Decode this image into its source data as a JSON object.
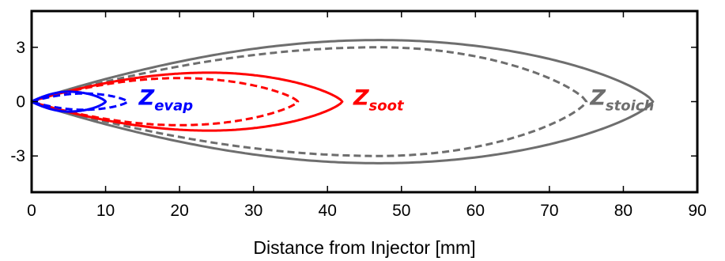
{
  "chart_data": {
    "type": "line",
    "title": "",
    "xlabel": "Distance from Injector [mm]",
    "ylabel": "",
    "xlim": [
      0,
      90
    ],
    "ylim": [
      -5,
      5
    ],
    "xticks": [
      0,
      10,
      20,
      30,
      40,
      50,
      60,
      70,
      80,
      90
    ],
    "yticks": [
      -3,
      0,
      3
    ],
    "ytick_labels": [
      "-3",
      "0",
      "3"
    ],
    "xtick_labels": [
      "0",
      "10",
      "20",
      "30",
      "40",
      "50",
      "60",
      "70",
      "80",
      "90"
    ],
    "grid": false,
    "legend": "none",
    "series": [
      {
        "group": "stoich",
        "style": "solid",
        "color": "#6e6e6e",
        "tip_x": 84,
        "max_y": 3.4,
        "max_at_x": 47
      },
      {
        "group": "stoich",
        "style": "dashed",
        "color": "#6e6e6e",
        "tip_x": 75,
        "max_y": 3.0,
        "max_at_x": 47
      },
      {
        "group": "soot",
        "style": "solid",
        "color": "#ff0000",
        "tip_x": 42,
        "max_y": 1.6,
        "max_at_x": 24
      },
      {
        "group": "soot",
        "style": "dashed",
        "color": "#ff0000",
        "tip_x": 36,
        "max_y": 1.3,
        "max_at_x": 20
      },
      {
        "group": "evap",
        "style": "solid",
        "color": "#0000ff",
        "tip_x": 10,
        "max_y": 0.55,
        "max_at_x": 5
      },
      {
        "group": "evap",
        "style": "dashed",
        "color": "#0000ff",
        "tip_x": 13,
        "max_y": 0.45,
        "max_at_x": 7
      }
    ],
    "annotations": [
      {
        "name": "evap",
        "base": "Z",
        "sub": "evap",
        "color": "#0000ff",
        "x": 14.5,
        "y": 0
      },
      {
        "name": "soot",
        "base": "Z",
        "sub": "soot",
        "color": "#ff0000",
        "x": 43.5,
        "y": 0
      },
      {
        "name": "stoich",
        "base": "Z",
        "sub": "stoich",
        "color": "#6e6e6e",
        "x": 75.5,
        "y": 0
      }
    ]
  }
}
